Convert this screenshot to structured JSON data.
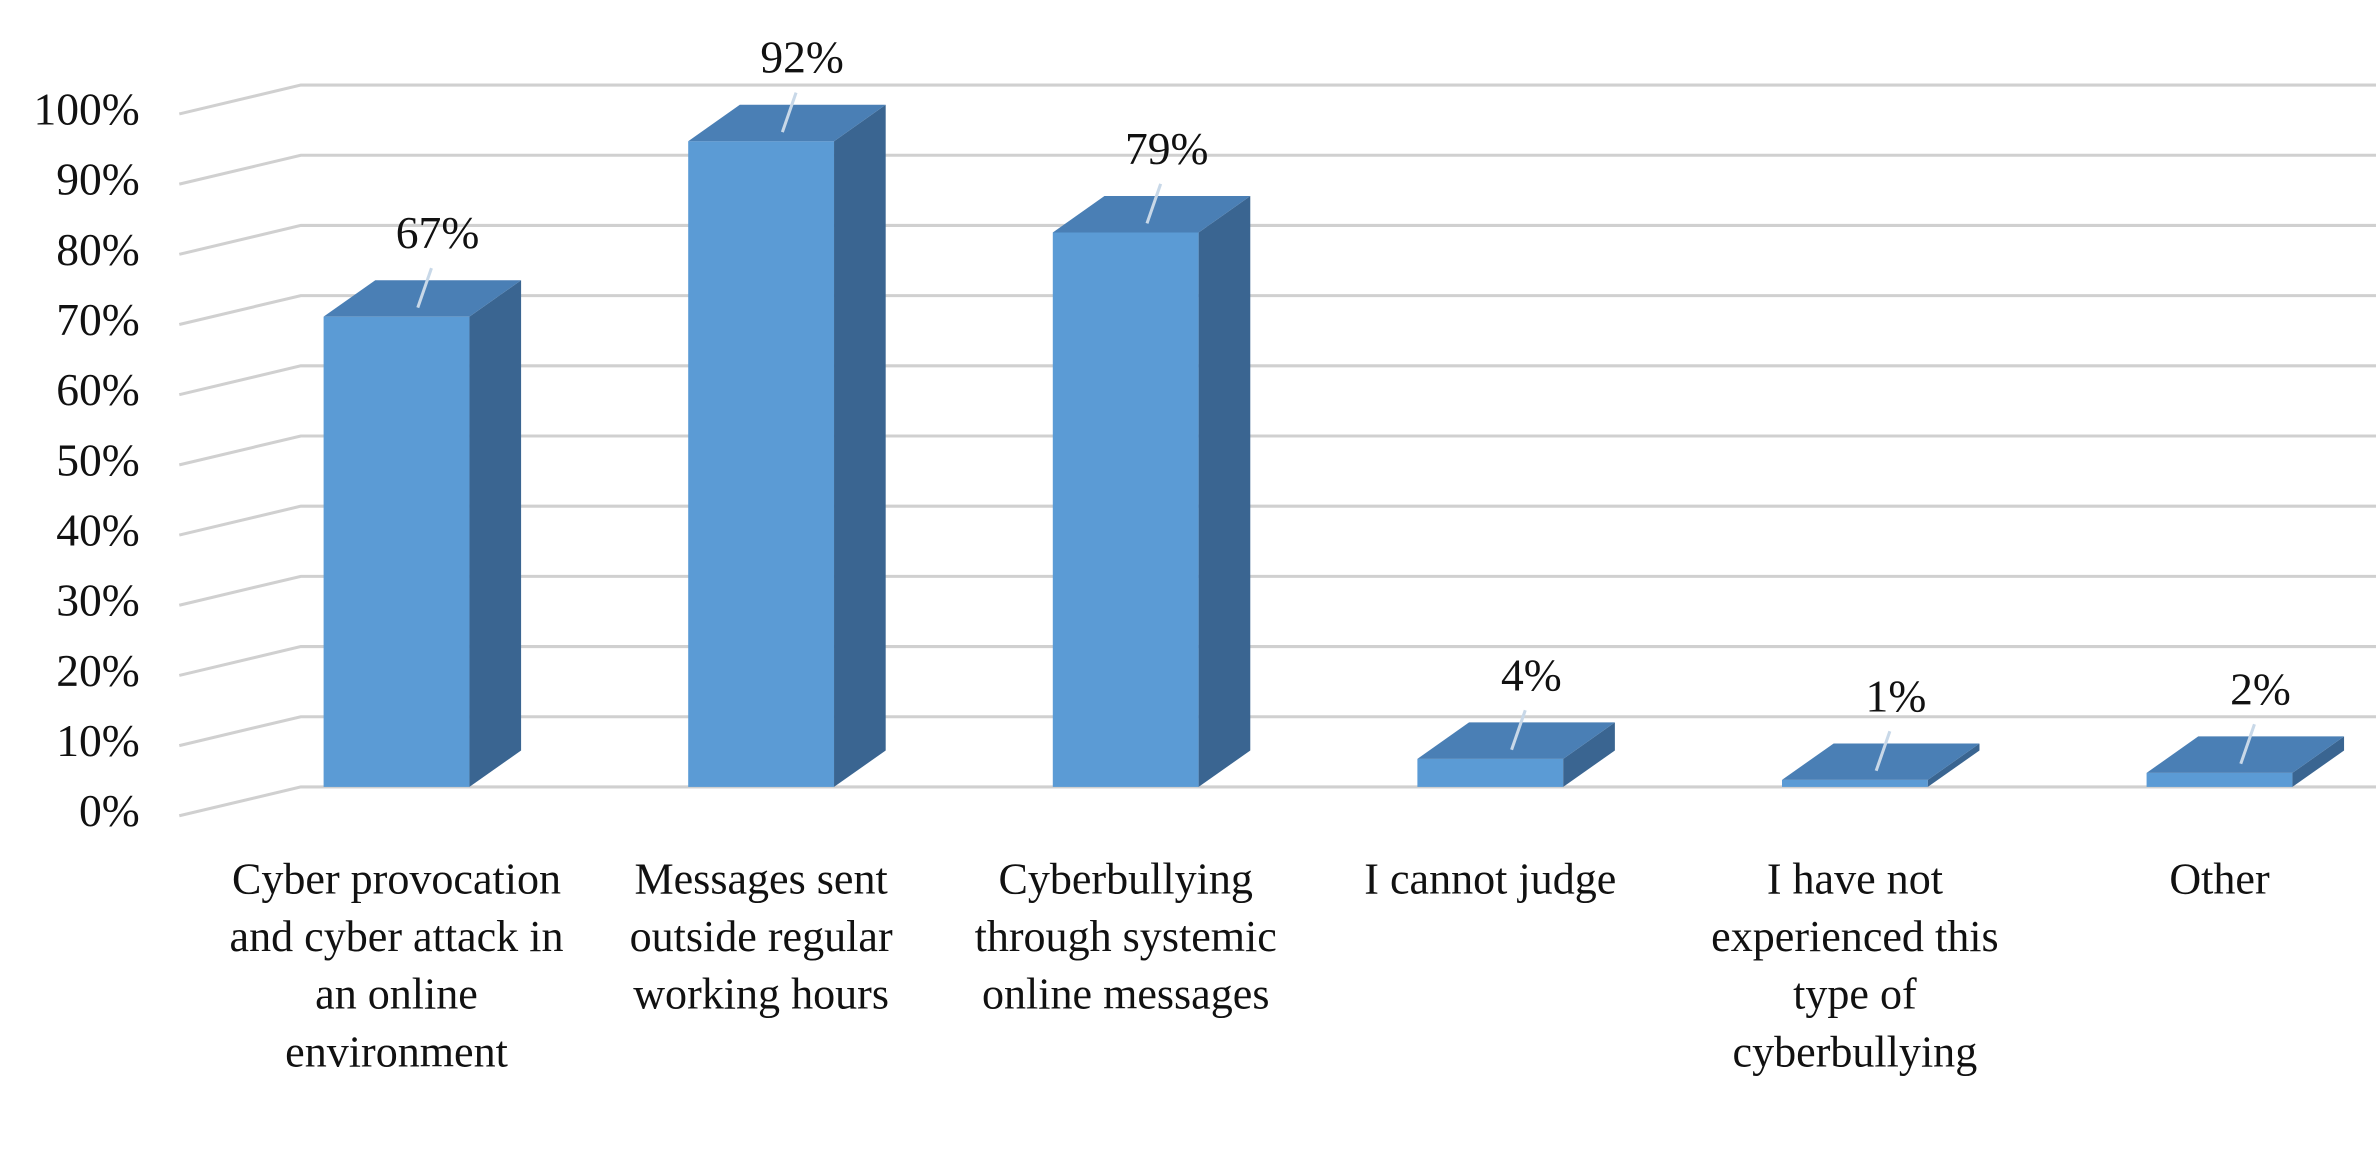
{
  "chart_data": {
    "type": "bar3d",
    "categories": [
      "Cyber provocation and cyber attack in an online environment",
      "Messages sent outside regular working hours",
      "Cyberbullying through systemic online messages",
      "I cannot judge",
      "I have not experienced this type of cyberbullying",
      "Other"
    ],
    "values": [
      67,
      92,
      79,
      4,
      1,
      2
    ],
    "value_labels": [
      "67%",
      "92%",
      "79%",
      "4%",
      "1%",
      "2%"
    ],
    "color": "#5b9bd5",
    "ylim": [
      0,
      100
    ],
    "yticks": [
      {
        "value": 0,
        "label": "0%"
      },
      {
        "value": 10,
        "label": "10%"
      },
      {
        "value": 20,
        "label": "20%"
      },
      {
        "value": 30,
        "label": "30%"
      },
      {
        "value": 40,
        "label": "40%"
      },
      {
        "value": 50,
        "label": "50%"
      },
      {
        "value": 60,
        "label": "60%"
      },
      {
        "value": 70,
        "label": "70%"
      },
      {
        "value": 80,
        "label": "80%"
      },
      {
        "value": 90,
        "label": "90%"
      },
      {
        "value": 100,
        "label": "100%"
      }
    ],
    "grid": true
  }
}
